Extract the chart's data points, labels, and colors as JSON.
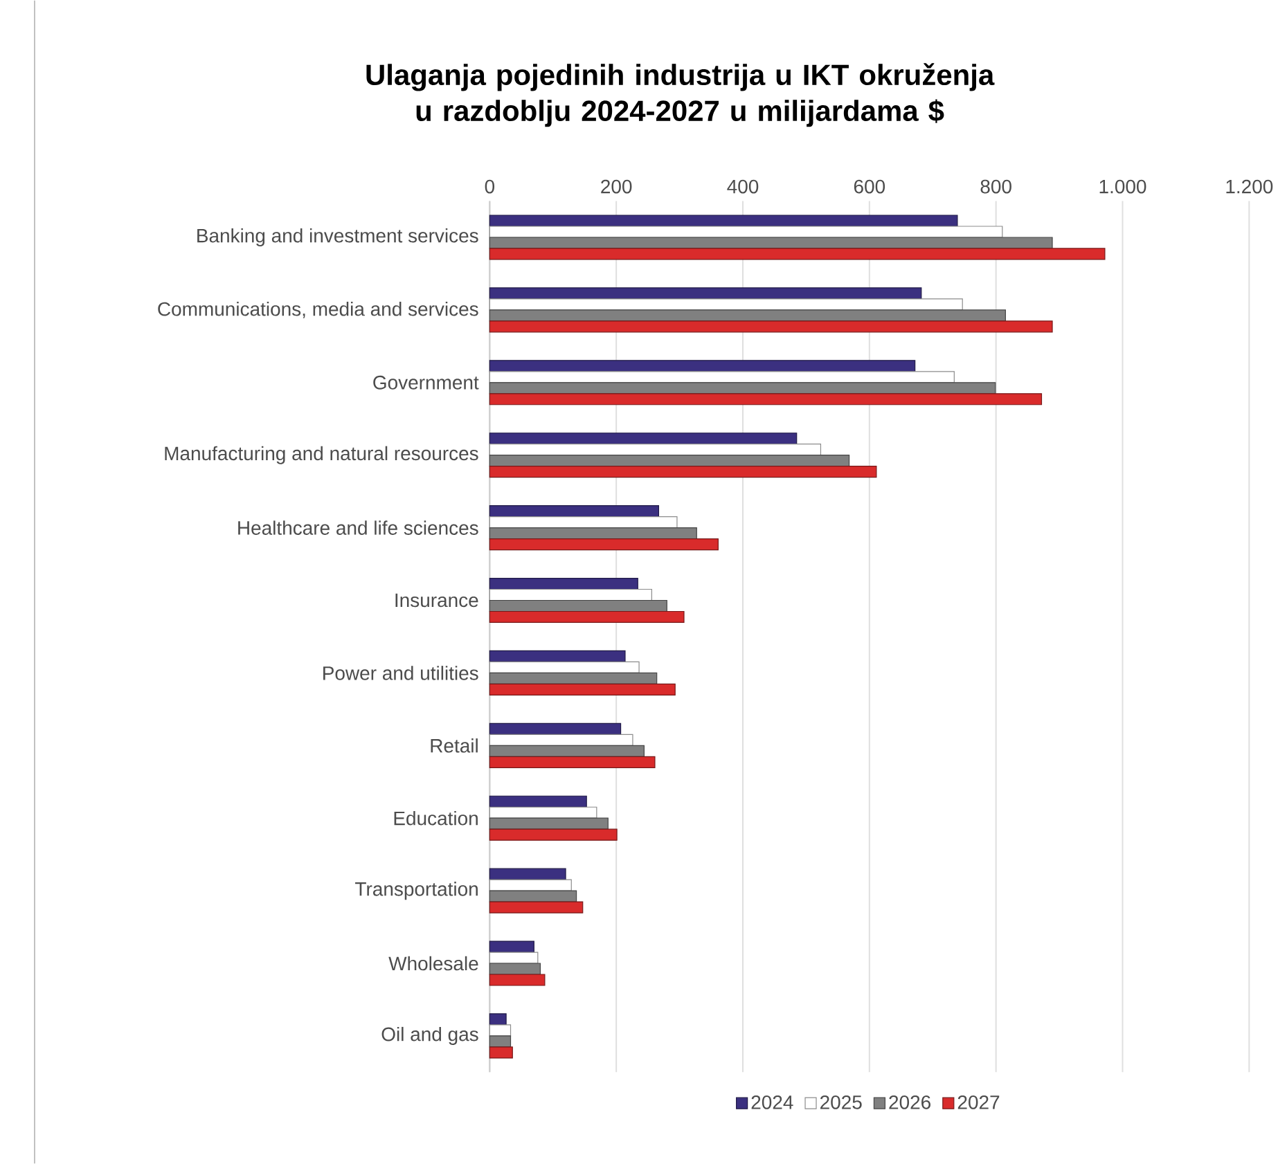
{
  "chart_data": {
    "type": "bar",
    "orientation": "horizontal",
    "title": "Ulaganja pojedinih industrija u IKT okruženja u razdoblju 2024-2027 u milijardama $",
    "categories": [
      "Banking and investment services",
      "Communications, media and services",
      "Government",
      "Manufacturing and natural resources",
      "Healthcare and life sciences",
      "Insurance",
      "Power and utilities",
      "Retail",
      "Education",
      "Transportation",
      "Wholesale",
      "Oil and gas"
    ],
    "series": [
      {
        "name": "2024",
        "color": "#3b3080",
        "values": [
          739,
          682,
          672,
          485,
          267,
          234,
          214,
          207,
          153,
          120,
          70,
          26
        ]
      },
      {
        "name": "2025",
        "color": "#ffffff",
        "values": [
          810,
          747,
          734,
          523,
          296,
          256,
          236,
          226,
          169,
          129,
          76,
          33
        ]
      },
      {
        "name": "2026",
        "color": "#808080",
        "values": [
          889,
          815,
          799,
          568,
          327,
          280,
          264,
          244,
          187,
          137,
          80,
          33
        ]
      },
      {
        "name": "2027",
        "color": "#d92b2b",
        "values": [
          972,
          889,
          872,
          611,
          361,
          307,
          293,
          261,
          201,
          147,
          87,
          36
        ]
      }
    ],
    "xlim": [
      0,
      1200
    ],
    "xticks": [
      0,
      200,
      400,
      600,
      800,
      {
        "value": 1000,
        "label": "1.000"
      },
      {
        "value": 1200,
        "label": "1.200"
      }
    ],
    "grid": "x",
    "legend": "bottom"
  }
}
